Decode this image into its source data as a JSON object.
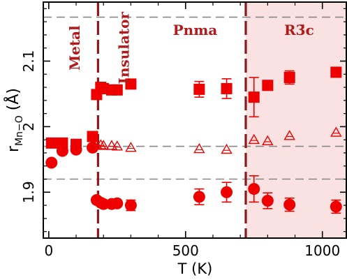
{
  "chart_data": {
    "type": "scatter",
    "xlabel": "T (K)",
    "ylabel": {
      "main": "r",
      "sub": "Mn−O",
      "unit": "(Å)"
    },
    "xlim": [
      -20,
      1090
    ],
    "ylim": [
      1.83,
      2.19
    ],
    "xticks": [
      {
        "v": 0,
        "label": "0"
      },
      {
        "v": 500,
        "label": "500"
      },
      {
        "v": 1000,
        "label": "1000"
      }
    ],
    "yticks": [
      {
        "v": 1.9,
        "label": "1.9"
      },
      {
        "v": 2.0,
        "label": "2"
      },
      {
        "v": 2.1,
        "label": "2.1"
      }
    ],
    "grid": false,
    "colors": {
      "marker": "#ee0000",
      "shading": "#fbe2e2",
      "transition_line": "#8b1a1a",
      "reference_line": "#888888",
      "region_label": "#b01a1a"
    },
    "shaded_region": {
      "x_from": 720,
      "x_to": 1090
    },
    "transition_lines": [
      180,
      720
    ],
    "reference_lines": [
      1.92,
      1.97,
      2.167
    ],
    "region_labels": [
      {
        "text": "Metal",
        "rotated": true,
        "x": 95,
        "y": 2.12
      },
      {
        "text": "Insulator",
        "rotated": true,
        "x": 275,
        "y": 2.12
      },
      {
        "text": "Pnma",
        "rotated": false,
        "x": 535,
        "y": 2.14
      },
      {
        "text": "R3̄c",
        "rotated": false,
        "x": 915,
        "y": 2.14
      }
    ],
    "series": [
      {
        "marker": "square",
        "points": [
          {
            "x": 10,
            "y": 1.975
          },
          {
            "x": 50,
            "y": 1.975
          },
          {
            "x": 100,
            "y": 1.973
          },
          {
            "x": 160,
            "y": 1.985
          },
          {
            "x": 175,
            "y": 2.049
          },
          {
            "x": 190,
            "y": 2.06
          },
          {
            "x": 200,
            "y": 2.058
          },
          {
            "x": 230,
            "y": 2.056
          },
          {
            "x": 250,
            "y": 2.056
          },
          {
            "x": 300,
            "y": 2.065
          },
          {
            "x": 550,
            "y": 2.057,
            "err": 0.012
          },
          {
            "x": 650,
            "y": 2.058,
            "err": 0.015
          },
          {
            "x": 750,
            "y": 2.045,
            "err": 0.03
          },
          {
            "x": 800,
            "y": 2.063
          },
          {
            "x": 880,
            "y": 2.075,
            "err": 0.01
          },
          {
            "x": 1050,
            "y": 2.083
          }
        ]
      },
      {
        "marker": "circle",
        "points": [
          {
            "x": 10,
            "y": 1.945
          },
          {
            "x": 50,
            "y": 1.963
          },
          {
            "x": 100,
            "y": 1.965
          },
          {
            "x": 160,
            "y": 1.968
          },
          {
            "x": 175,
            "y": 1.888
          },
          {
            "x": 190,
            "y": 1.884
          },
          {
            "x": 200,
            "y": 1.882
          },
          {
            "x": 230,
            "y": 1.882
          },
          {
            "x": 250,
            "y": 1.883
          },
          {
            "x": 300,
            "y": 1.88,
            "err": 0.008
          },
          {
            "x": 550,
            "y": 1.893,
            "err": 0.012
          },
          {
            "x": 650,
            "y": 1.9,
            "err": 0.015
          },
          {
            "x": 750,
            "y": 1.905,
            "err": 0.02
          },
          {
            "x": 800,
            "y": 1.887,
            "err": 0.012
          },
          {
            "x": 880,
            "y": 1.881,
            "err": 0.01
          },
          {
            "x": 1050,
            "y": 1.878,
            "err": 0.01
          }
        ]
      },
      {
        "marker": "triangle-open",
        "points": [
          {
            "x": 175,
            "y": 1.972
          },
          {
            "x": 190,
            "y": 1.972
          },
          {
            "x": 200,
            "y": 1.971
          },
          {
            "x": 230,
            "y": 1.971
          },
          {
            "x": 250,
            "y": 1.97
          },
          {
            "x": 300,
            "y": 1.968
          },
          {
            "x": 550,
            "y": 1.966
          },
          {
            "x": 650,
            "y": 1.965
          },
          {
            "x": 750,
            "y": 1.98
          },
          {
            "x": 800,
            "y": 1.978
          },
          {
            "x": 880,
            "y": 1.986
          },
          {
            "x": 1050,
            "y": 1.991
          }
        ]
      }
    ]
  }
}
